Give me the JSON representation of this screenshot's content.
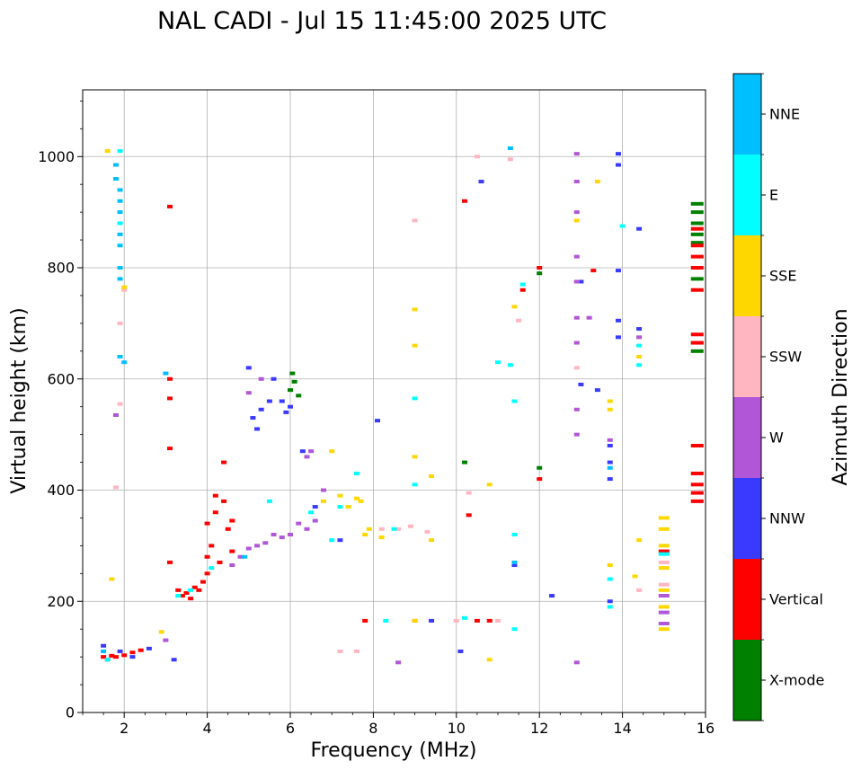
{
  "chart_data": {
    "type": "scatter",
    "title": "NAL CADI - Jul 15 11:45:00 2025 UTC",
    "xlabel": "Frequency (MHz)",
    "ylabel": "Virtual height (km)",
    "xlim": [
      1,
      16
    ],
    "ylim": [
      0,
      1120
    ],
    "xticks": [
      2,
      4,
      6,
      8,
      10,
      12,
      14,
      16
    ],
    "yticks": [
      0,
      200,
      400,
      600,
      800,
      1000
    ],
    "grid": true,
    "colorbar": {
      "title": "Azimuth Direction",
      "categories": [
        {
          "name": "X-mode",
          "color": "#008000"
        },
        {
          "name": "Vertical",
          "color": "#ff0000"
        },
        {
          "name": "NNW",
          "color": "#3a3aff"
        },
        {
          "name": "W",
          "color": "#b156d6"
        },
        {
          "name": "SSW",
          "color": "#ffb6c1"
        },
        {
          "name": "SSE",
          "color": "#ffd700"
        },
        {
          "name": "E",
          "color": "#00ffff"
        },
        {
          "name": "NNE",
          "color": "#00bfff"
        }
      ]
    },
    "series": [
      {
        "name": "X-mode",
        "points": [
          [
            6.0,
            580
          ],
          [
            6.1,
            595
          ],
          [
            6.2,
            570
          ],
          [
            6.05,
            610
          ],
          [
            10.2,
            450
          ],
          [
            12.0,
            790
          ],
          [
            12.0,
            440
          ],
          [
            15.8,
            915
          ],
          [
            15.8,
            900
          ],
          [
            15.8,
            880
          ],
          [
            15.8,
            860
          ],
          [
            15.8,
            845
          ],
          [
            15.8,
            780
          ],
          [
            15.8,
            665
          ],
          [
            15.8,
            650
          ]
        ]
      },
      {
        "name": "Vertical",
        "points": [
          [
            1.5,
            100
          ],
          [
            1.6,
            95
          ],
          [
            1.7,
            102
          ],
          [
            1.8,
            100
          ],
          [
            2.0,
            103
          ],
          [
            2.2,
            108
          ],
          [
            2.4,
            112
          ],
          [
            3.1,
            910
          ],
          [
            3.1,
            600
          ],
          [
            3.1,
            565
          ],
          [
            3.1,
            475
          ],
          [
            3.1,
            270
          ],
          [
            3.3,
            220
          ],
          [
            3.4,
            210
          ],
          [
            3.5,
            215
          ],
          [
            3.6,
            205
          ],
          [
            3.7,
            225
          ],
          [
            3.8,
            220
          ],
          [
            3.9,
            235
          ],
          [
            4.0,
            250
          ],
          [
            4.0,
            280
          ],
          [
            4.0,
            340
          ],
          [
            4.1,
            300
          ],
          [
            4.2,
            360
          ],
          [
            4.2,
            390
          ],
          [
            4.3,
            270
          ],
          [
            4.4,
            380
          ],
          [
            4.4,
            450
          ],
          [
            4.5,
            330
          ],
          [
            4.6,
            290
          ],
          [
            4.6,
            345
          ],
          [
            7.8,
            165
          ],
          [
            9.0,
            165
          ],
          [
            10.2,
            920
          ],
          [
            10.3,
            355
          ],
          [
            10.5,
            165
          ],
          [
            10.8,
            165
          ],
          [
            11.6,
            760
          ],
          [
            12.0,
            800
          ],
          [
            12.0,
            420
          ],
          [
            13.3,
            795
          ],
          [
            15.0,
            290
          ],
          [
            15.8,
            760
          ],
          [
            15.8,
            800
          ],
          [
            15.8,
            820
          ],
          [
            15.8,
            840
          ],
          [
            15.8,
            870
          ],
          [
            15.8,
            680
          ],
          [
            15.8,
            665
          ],
          [
            15.8,
            480
          ],
          [
            15.8,
            430
          ],
          [
            15.8,
            410
          ],
          [
            15.8,
            395
          ],
          [
            15.8,
            380
          ]
        ]
      },
      {
        "name": "NNW",
        "points": [
          [
            1.5,
            120
          ],
          [
            1.9,
            110
          ],
          [
            2.2,
            100
          ],
          [
            2.6,
            115
          ],
          [
            3.2,
            95
          ],
          [
            5.0,
            620
          ],
          [
            5.1,
            530
          ],
          [
            5.2,
            510
          ],
          [
            5.3,
            545
          ],
          [
            5.5,
            560
          ],
          [
            5.6,
            600
          ],
          [
            5.8,
            560
          ],
          [
            5.9,
            540
          ],
          [
            6.0,
            550
          ],
          [
            6.3,
            470
          ],
          [
            6.6,
            370
          ],
          [
            7.2,
            310
          ],
          [
            8.1,
            525
          ],
          [
            9.4,
            165
          ],
          [
            10.6,
            955
          ],
          [
            10.1,
            110
          ],
          [
            11.4,
            265
          ],
          [
            12.3,
            210
          ],
          [
            13.0,
            590
          ],
          [
            13.0,
            775
          ],
          [
            13.4,
            580
          ],
          [
            13.7,
            480
          ],
          [
            13.7,
            450
          ],
          [
            13.7,
            420
          ],
          [
            13.7,
            200
          ],
          [
            13.9,
            1005
          ],
          [
            13.9,
            985
          ],
          [
            13.9,
            795
          ],
          [
            13.9,
            705
          ],
          [
            13.9,
            675
          ],
          [
            14.4,
            870
          ],
          [
            14.4,
            690
          ]
        ]
      },
      {
        "name": "W",
        "points": [
          [
            1.8,
            535
          ],
          [
            3.0,
            130
          ],
          [
            4.6,
            265
          ],
          [
            4.8,
            280
          ],
          [
            5.0,
            295
          ],
          [
            5.2,
            300
          ],
          [
            5.4,
            305
          ],
          [
            5.6,
            320
          ],
          [
            5.8,
            315
          ],
          [
            6.0,
            320
          ],
          [
            6.2,
            340
          ],
          [
            6.4,
            330
          ],
          [
            6.6,
            345
          ],
          [
            6.8,
            400
          ],
          [
            5.0,
            575
          ],
          [
            5.3,
            600
          ],
          [
            6.4,
            460
          ],
          [
            6.5,
            470
          ],
          [
            8.6,
            90
          ],
          [
            12.9,
            1005
          ],
          [
            12.9,
            955
          ],
          [
            12.9,
            900
          ],
          [
            12.9,
            820
          ],
          [
            12.9,
            775
          ],
          [
            12.9,
            710
          ],
          [
            12.9,
            665
          ],
          [
            12.9,
            545
          ],
          [
            12.9,
            500
          ],
          [
            12.9,
            90
          ],
          [
            13.2,
            710
          ],
          [
            13.7,
            490
          ],
          [
            14.4,
            675
          ],
          [
            15.0,
            210
          ],
          [
            15.0,
            180
          ],
          [
            15.0,
            160
          ]
        ]
      },
      {
        "name": "SSW",
        "points": [
          [
            1.8,
            405
          ],
          [
            1.9,
            700
          ],
          [
            1.9,
            555
          ],
          [
            2.0,
            760
          ],
          [
            7.2,
            110
          ],
          [
            7.6,
            110
          ],
          [
            8.2,
            330
          ],
          [
            8.6,
            330
          ],
          [
            8.9,
            335
          ],
          [
            9.0,
            885
          ],
          [
            9.3,
            325
          ],
          [
            10.0,
            165
          ],
          [
            10.3,
            395
          ],
          [
            10.5,
            1000
          ],
          [
            11.0,
            165
          ],
          [
            11.3,
            995
          ],
          [
            11.5,
            705
          ],
          [
            12.9,
            620
          ],
          [
            14.4,
            220
          ],
          [
            15.0,
            270
          ],
          [
            15.0,
            230
          ]
        ]
      },
      {
        "name": "SSE",
        "points": [
          [
            1.6,
            1010
          ],
          [
            1.7,
            240
          ],
          [
            2.0,
            765
          ],
          [
            2.9,
            145
          ],
          [
            6.8,
            380
          ],
          [
            7.0,
            470
          ],
          [
            7.2,
            390
          ],
          [
            7.4,
            370
          ],
          [
            7.6,
            385
          ],
          [
            7.7,
            380
          ],
          [
            7.8,
            320
          ],
          [
            7.9,
            330
          ],
          [
            8.2,
            315
          ],
          [
            9.0,
            165
          ],
          [
            9.0,
            460
          ],
          [
            9.0,
            725
          ],
          [
            9.0,
            660
          ],
          [
            9.4,
            425
          ],
          [
            9.4,
            310
          ],
          [
            10.8,
            95
          ],
          [
            10.8,
            410
          ],
          [
            11.4,
            730
          ],
          [
            12.9,
            885
          ],
          [
            13.4,
            955
          ],
          [
            13.7,
            560
          ],
          [
            13.7,
            545
          ],
          [
            13.7,
            265
          ],
          [
            14.3,
            245
          ],
          [
            14.4,
            310
          ],
          [
            14.4,
            640
          ],
          [
            15.0,
            350
          ],
          [
            15.0,
            330
          ],
          [
            15.0,
            300
          ],
          [
            15.0,
            260
          ],
          [
            15.0,
            220
          ],
          [
            15.0,
            190
          ],
          [
            15.0,
            150
          ]
        ]
      },
      {
        "name": "E",
        "points": [
          [
            1.6,
            95
          ],
          [
            1.9,
            1010
          ],
          [
            1.9,
            880
          ],
          [
            3.3,
            210
          ],
          [
            3.6,
            220
          ],
          [
            4.1,
            260
          ],
          [
            5.5,
            380
          ],
          [
            6.5,
            360
          ],
          [
            7.0,
            310
          ],
          [
            7.2,
            370
          ],
          [
            7.6,
            430
          ],
          [
            8.3,
            165
          ],
          [
            8.5,
            330
          ],
          [
            9.0,
            565
          ],
          [
            9.0,
            410
          ],
          [
            10.2,
            170
          ],
          [
            11.0,
            630
          ],
          [
            11.3,
            625
          ],
          [
            11.4,
            560
          ],
          [
            11.4,
            320
          ],
          [
            11.4,
            150
          ],
          [
            11.6,
            770
          ],
          [
            13.7,
            240
          ],
          [
            13.7,
            190
          ],
          [
            14.0,
            875
          ],
          [
            14.4,
            660
          ],
          [
            14.4,
            625
          ],
          [
            15.0,
            285
          ]
        ]
      },
      {
        "name": "NNE",
        "points": [
          [
            1.5,
            110
          ],
          [
            1.8,
            985
          ],
          [
            1.8,
            960
          ],
          [
            1.9,
            940
          ],
          [
            1.9,
            920
          ],
          [
            1.9,
            900
          ],
          [
            1.9,
            860
          ],
          [
            1.9,
            840
          ],
          [
            1.9,
            800
          ],
          [
            1.9,
            780
          ],
          [
            1.9,
            640
          ],
          [
            2.0,
            630
          ],
          [
            3.0,
            610
          ],
          [
            4.9,
            280
          ],
          [
            11.3,
            1015
          ],
          [
            11.4,
            270
          ],
          [
            13.7,
            440
          ]
        ]
      }
    ]
  }
}
